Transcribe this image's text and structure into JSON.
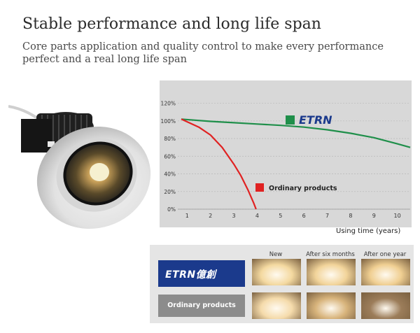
{
  "header": {
    "title": "Stable performance and long life span",
    "subtitle": "Core parts application and quality control to make every performance perfect and a real long life span"
  },
  "chart_data": {
    "type": "line",
    "xlabel": "Using time (years)",
    "ylabel": "",
    "xlim": [
      0.6,
      10.55
    ],
    "ylim": [
      0,
      130
    ],
    "x_ticks": [
      "1",
      "2",
      "3",
      "4",
      "5",
      "6",
      "7",
      "8",
      "9",
      "10"
    ],
    "y_ticks": [
      "0%",
      "20%",
      "40%",
      "60%",
      "80%",
      "100%",
      "120%"
    ],
    "series": [
      {
        "name": "ETRN",
        "color": "#1f8f4a",
        "x": [
          0.75,
          2,
          3,
          4,
          5,
          6,
          7,
          8,
          9,
          10,
          10.55
        ],
        "y": [
          102,
          99.5,
          98,
          96.5,
          95,
          93,
          90,
          86,
          81,
          74,
          70
        ]
      },
      {
        "name": "Ordinary products",
        "color": "#e02222",
        "x": [
          0.75,
          1.5,
          2,
          2.5,
          3,
          3.3,
          3.6,
          3.85,
          3.95
        ],
        "y": [
          102,
          93,
          84,
          70,
          51,
          38,
          22,
          7,
          0
        ]
      }
    ],
    "legend": [
      {
        "label": "ETRN",
        "color": "#1f8f4a"
      },
      {
        "label": "Ordinary products",
        "color": "#e02222"
      }
    ]
  },
  "comparison": {
    "columns": [
      "New",
      "After six months",
      "After one year"
    ],
    "rows": [
      {
        "label": "ETRN億創",
        "box_color": "#1b3a8c",
        "swatches": [
          "#f4d9a0",
          "#f2d49a",
          "#f0cf92"
        ]
      },
      {
        "label": "Ordinary products",
        "box_color": "#8c8c8c",
        "swatches": [
          "#f5dbab",
          "#d8b47c",
          "#9c7d5a"
        ]
      }
    ]
  }
}
